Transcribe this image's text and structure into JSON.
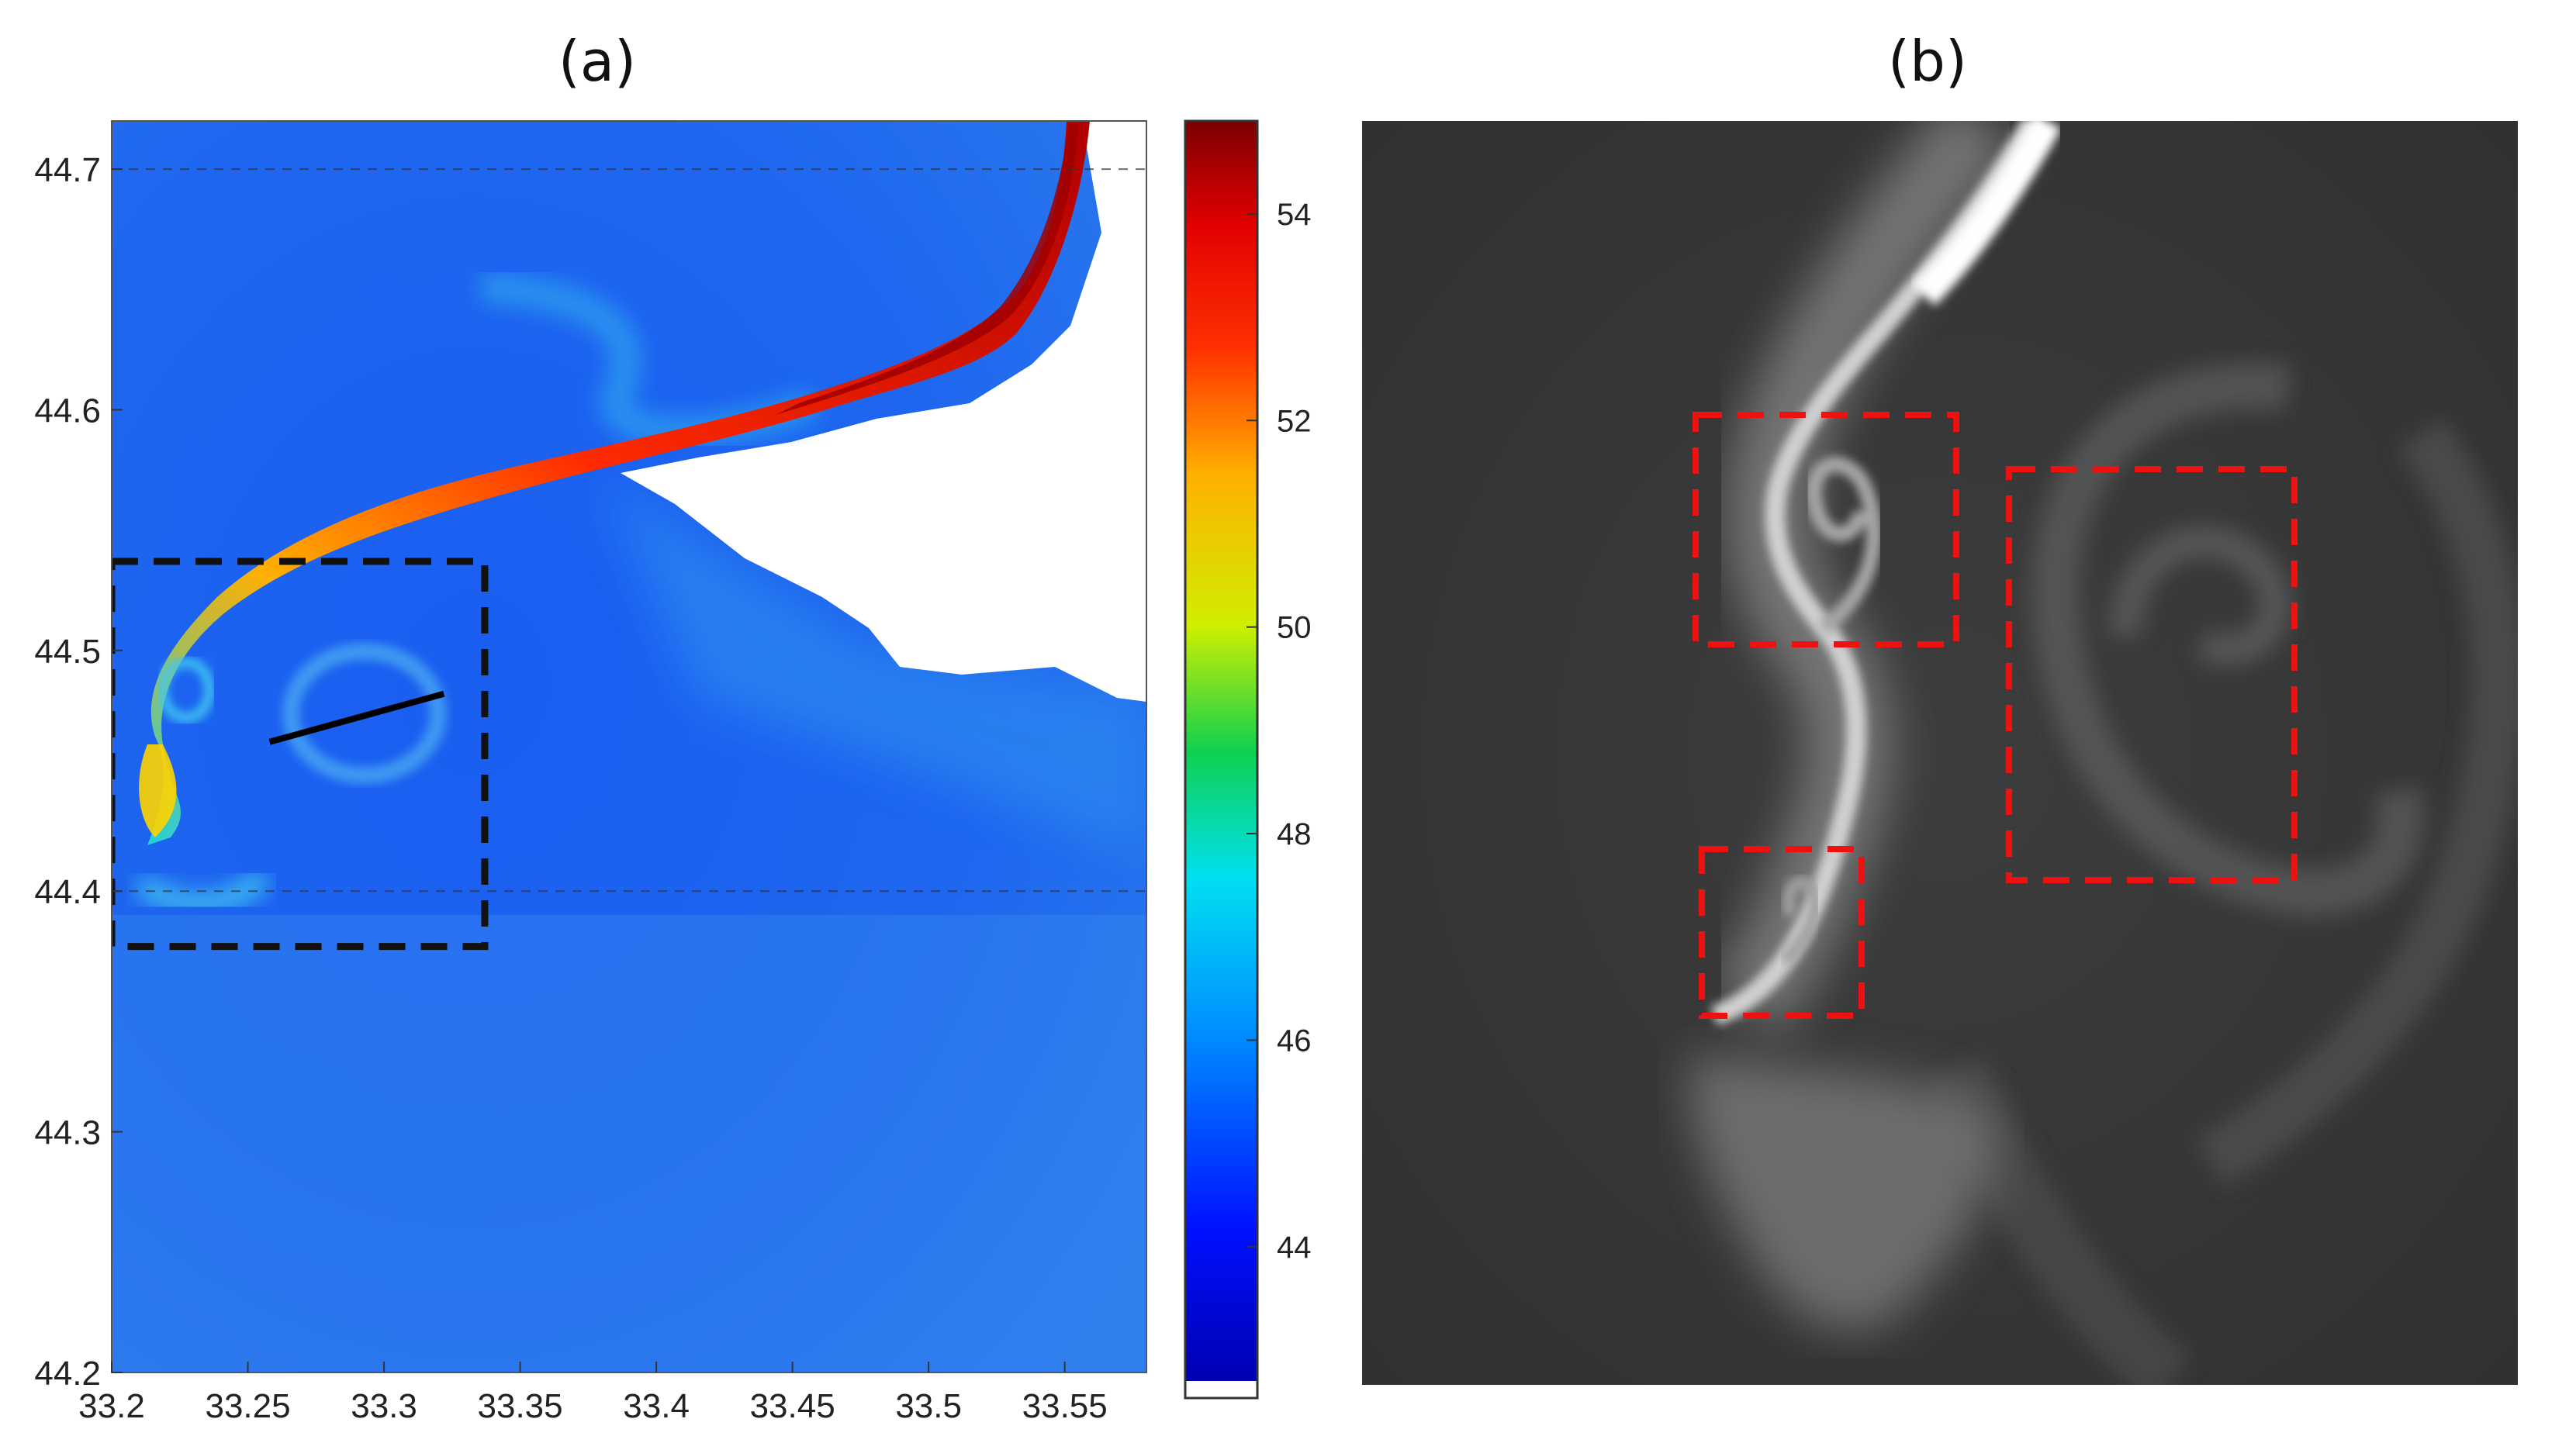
{
  "panels": {
    "a_label": "(a)",
    "b_label": "(b)"
  },
  "chart_data": [
    {
      "type": "heatmap",
      "panel": "(a)",
      "title": "",
      "xlabel": "",
      "ylabel": "",
      "xlim": [
        33.2,
        33.58
      ],
      "ylim": [
        44.2,
        44.72
      ],
      "xticks": [
        33.2,
        33.25,
        33.3,
        33.35,
        33.4,
        33.45,
        33.5,
        33.55
      ],
      "xtick_labels": [
        "33.2",
        "33.25",
        "33.3",
        "33.35",
        "33.4",
        "33.45",
        "33.5",
        "33.55"
      ],
      "yticks": [
        44.2,
        44.3,
        44.4,
        44.5,
        44.6,
        44.7
      ],
      "ytick_labels": [
        "44.2",
        "44.3",
        "44.4",
        "44.5",
        "44.6",
        "44.7"
      ],
      "grid_lines_y": [
        44.4,
        44.7
      ],
      "colorbar": {
        "range": [
          42.7,
          54.9
        ],
        "ticks": [
          44,
          46,
          48,
          50,
          52,
          54
        ],
        "tick_labels": [
          "44",
          "46",
          "48",
          "50",
          "52",
          "54"
        ],
        "colormap": "jet"
      },
      "land_color": "#ffffff",
      "background_value": 45,
      "plume_value_max": 54,
      "box": {
        "color": "#111111",
        "style": "dashed",
        "lon": [
          33.2,
          33.337
        ],
        "lat": [
          44.377,
          44.537
        ]
      },
      "transect": {
        "color": "#000000",
        "lon": [
          33.258,
          33.322
        ],
        "lat": [
          44.462,
          44.482
        ]
      }
    },
    {
      "type": "heatmap",
      "panel": "(b)",
      "title": "",
      "colormap": "grayscale",
      "boxes": [
        {
          "color": "#ee1111",
          "style": "dashed"
        },
        {
          "color": "#ee1111",
          "style": "dashed"
        },
        {
          "color": "#ee1111",
          "style": "dashed"
        }
      ]
    }
  ]
}
